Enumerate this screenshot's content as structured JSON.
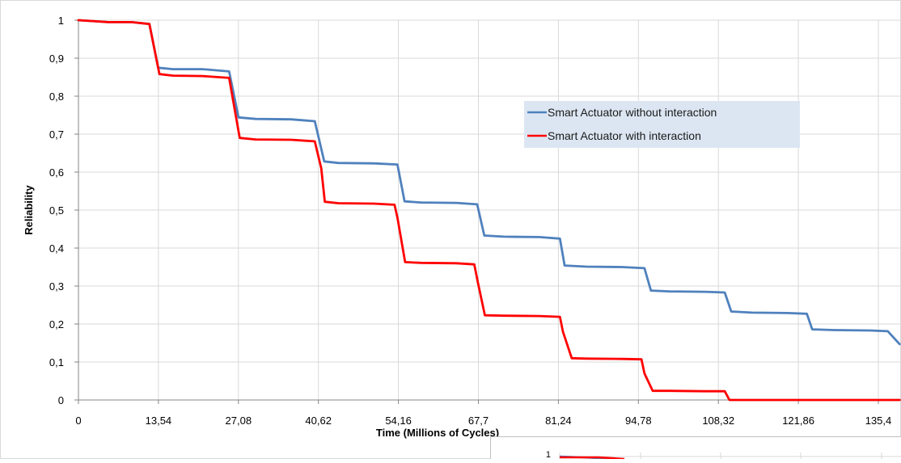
{
  "chart_data": {
    "type": "line",
    "title": "",
    "xlabel": "Time (Millions of Cycles)",
    "ylabel": "Reliability",
    "xlim": [
      0,
      135.4
    ],
    "ylim": [
      0,
      1
    ],
    "x_ticks": [
      "0",
      "13,54",
      "27,08",
      "40,62",
      "54,16",
      "67,7",
      "81,24",
      "94,78",
      "108,32",
      "121,86",
      "135,4"
    ],
    "y_ticks": [
      "0",
      "0,1",
      "0,2",
      "0,3",
      "0,4",
      "0,5",
      "0,6",
      "0,7",
      "0,8",
      "0,9",
      "1"
    ],
    "grid": true,
    "legend": "right-center",
    "series": [
      {
        "name": "Smart Actuator without interaction",
        "color": "#4f81bd",
        "points": [
          [
            0,
            1
          ],
          [
            3,
            0.997
          ],
          [
            5,
            0.995
          ],
          [
            9,
            0.995
          ],
          [
            12,
            0.99
          ],
          [
            13.5,
            0.875
          ],
          [
            16,
            0.871
          ],
          [
            21,
            0.871
          ],
          [
            25.5,
            0.865
          ],
          [
            27.1,
            0.744
          ],
          [
            30,
            0.74
          ],
          [
            36,
            0.739
          ],
          [
            40,
            0.734
          ],
          [
            41.6,
            0.628
          ],
          [
            44,
            0.624
          ],
          [
            50,
            0.623
          ],
          [
            54,
            0.62
          ],
          [
            55.2,
            0.523
          ],
          [
            58,
            0.52
          ],
          [
            64,
            0.519
          ],
          [
            67.5,
            0.515
          ],
          [
            68.7,
            0.433
          ],
          [
            72,
            0.43
          ],
          [
            78,
            0.429
          ],
          [
            81.5,
            0.425
          ],
          [
            82.3,
            0.354
          ],
          [
            86,
            0.351
          ],
          [
            92,
            0.35
          ],
          [
            95.8,
            0.347
          ],
          [
            96.9,
            0.288
          ],
          [
            100,
            0.286
          ],
          [
            106,
            0.285
          ],
          [
            109.4,
            0.283
          ],
          [
            110.5,
            0.233
          ],
          [
            114,
            0.23
          ],
          [
            120,
            0.229
          ],
          [
            123.3,
            0.227
          ],
          [
            124.2,
            0.186
          ],
          [
            128,
            0.184
          ],
          [
            134,
            0.183
          ],
          [
            137,
            0.181
          ],
          [
            139,
            0.147
          ]
        ]
      },
      {
        "name": "Smart Actuator with interaction",
        "color": "#ff0000",
        "points": [
          [
            0,
            1
          ],
          [
            3,
            0.997
          ],
          [
            5,
            0.995
          ],
          [
            9,
            0.995
          ],
          [
            12,
            0.99
          ],
          [
            13.7,
            0.858
          ],
          [
            16,
            0.854
          ],
          [
            21,
            0.853
          ],
          [
            25.5,
            0.848
          ],
          [
            27.3,
            0.69
          ],
          [
            30,
            0.686
          ],
          [
            36,
            0.685
          ],
          [
            40,
            0.681
          ],
          [
            41.1,
            0.61
          ],
          [
            41.7,
            0.522
          ],
          [
            44,
            0.518
          ],
          [
            50,
            0.517
          ],
          [
            53.5,
            0.514
          ],
          [
            54,
            0.48
          ],
          [
            55.3,
            0.363
          ],
          [
            58,
            0.361
          ],
          [
            64,
            0.36
          ],
          [
            67,
            0.357
          ],
          [
            67.6,
            0.31
          ],
          [
            68.8,
            0.223
          ],
          [
            72,
            0.222
          ],
          [
            78,
            0.221
          ],
          [
            81.5,
            0.219
          ],
          [
            82,
            0.18
          ],
          [
            83.5,
            0.11
          ],
          [
            86,
            0.109
          ],
          [
            92,
            0.108
          ],
          [
            95.3,
            0.107
          ],
          [
            95.8,
            0.07
          ],
          [
            97.2,
            0.024
          ],
          [
            100,
            0.024
          ],
          [
            106,
            0.023
          ],
          [
            109.4,
            0.023
          ],
          [
            110.2,
            0
          ],
          [
            139,
            0
          ]
        ]
      }
    ],
    "inset": {
      "y_tick": "1",
      "x_label_partial": "Time (Millions of Cycles)"
    }
  }
}
